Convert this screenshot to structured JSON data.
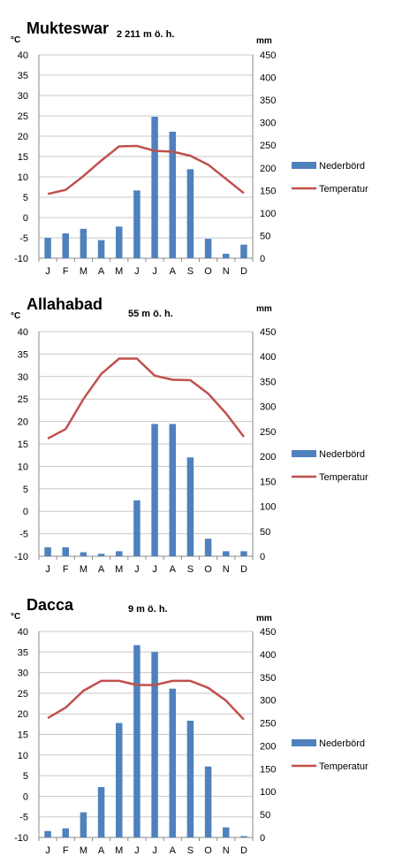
{
  "colors": {
    "bar": "#4f81bd",
    "line": "#c0504d",
    "grid": "#c8c8c8"
  },
  "legend": {
    "bar_label": "Nederbörd",
    "line_label": "Temperatur"
  },
  "chart_data": [
    {
      "type": "bar",
      "title": "Mukteswar",
      "elevation": "2 211 m ö. h.",
      "y_unit_left": "°C",
      "y_unit_right": "mm",
      "categories": [
        "J",
        "F",
        "M",
        "A",
        "M",
        "J",
        "J",
        "A",
        "S",
        "O",
        "N",
        "D"
      ],
      "ylim_left": [
        -10,
        40
      ],
      "ylim_right": [
        0,
        450
      ],
      "yticks_left": [
        -10,
        -5,
        0,
        5,
        10,
        15,
        20,
        25,
        30,
        35,
        40
      ],
      "yticks_right": [
        0,
        50,
        100,
        150,
        200,
        250,
        300,
        350,
        400,
        450
      ],
      "series": [
        {
          "name": "Nederbörd",
          "type": "bar",
          "axis": "right",
          "values": [
            45,
            55,
            65,
            40,
            70,
            150,
            313,
            280,
            197,
            43,
            10,
            30
          ]
        },
        {
          "name": "Temperatur",
          "type": "line",
          "axis": "left",
          "values": [
            5.8,
            6.8,
            10.2,
            14.0,
            17.5,
            17.6,
            16.4,
            16.2,
            15.2,
            13.0,
            9.5,
            6.0
          ]
        }
      ]
    },
    {
      "type": "bar",
      "title": "Allahabad",
      "elevation": "55 m ö. h.",
      "y_unit_left": "°C",
      "y_unit_right": "mm",
      "categories": [
        "J",
        "F",
        "M",
        "A",
        "M",
        "J",
        "J",
        "A",
        "S",
        "O",
        "N",
        "D"
      ],
      "ylim_left": [
        -10,
        40
      ],
      "ylim_right": [
        0,
        450
      ],
      "yticks_left": [
        -10,
        -5,
        0,
        5,
        10,
        15,
        20,
        25,
        30,
        35,
        40
      ],
      "yticks_right": [
        0,
        50,
        100,
        150,
        200,
        250,
        300,
        350,
        400,
        450
      ],
      "series": [
        {
          "name": "Nederbörd",
          "type": "bar",
          "axis": "right",
          "values": [
            18,
            18,
            8,
            5,
            10,
            112,
            265,
            265,
            198,
            35,
            10,
            10
          ]
        },
        {
          "name": "Temperatur",
          "type": "line",
          "axis": "left",
          "values": [
            16.2,
            18.3,
            25.0,
            30.6,
            34.0,
            34.0,
            30.2,
            29.3,
            29.2,
            26.2,
            21.8,
            16.6
          ]
        }
      ]
    },
    {
      "type": "bar",
      "title": "Dacca",
      "elevation": "9 m ö. h.",
      "y_unit_left": "°C",
      "y_unit_right": "mm",
      "categories": [
        "J",
        "F",
        "M",
        "A",
        "M",
        "J",
        "J",
        "A",
        "S",
        "O",
        "N",
        "D"
      ],
      "ylim_left": [
        -10,
        40
      ],
      "ylim_right": [
        0,
        450
      ],
      "yticks_left": [
        -10,
        -5,
        0,
        5,
        10,
        15,
        20,
        25,
        30,
        35,
        40
      ],
      "yticks_right": [
        0,
        50,
        100,
        150,
        200,
        250,
        300,
        350,
        400,
        450
      ],
      "series": [
        {
          "name": "Nederbörd",
          "type": "bar",
          "axis": "right",
          "values": [
            14,
            20,
            55,
            110,
            250,
            420,
            405,
            325,
            255,
            155,
            22,
            3
          ]
        },
        {
          "name": "Temperatur",
          "type": "line",
          "axis": "left",
          "values": [
            19.0,
            21.5,
            25.6,
            28.0,
            28.0,
            27.0,
            27.0,
            28.0,
            28.0,
            26.3,
            23.2,
            18.6
          ]
        }
      ]
    }
  ]
}
